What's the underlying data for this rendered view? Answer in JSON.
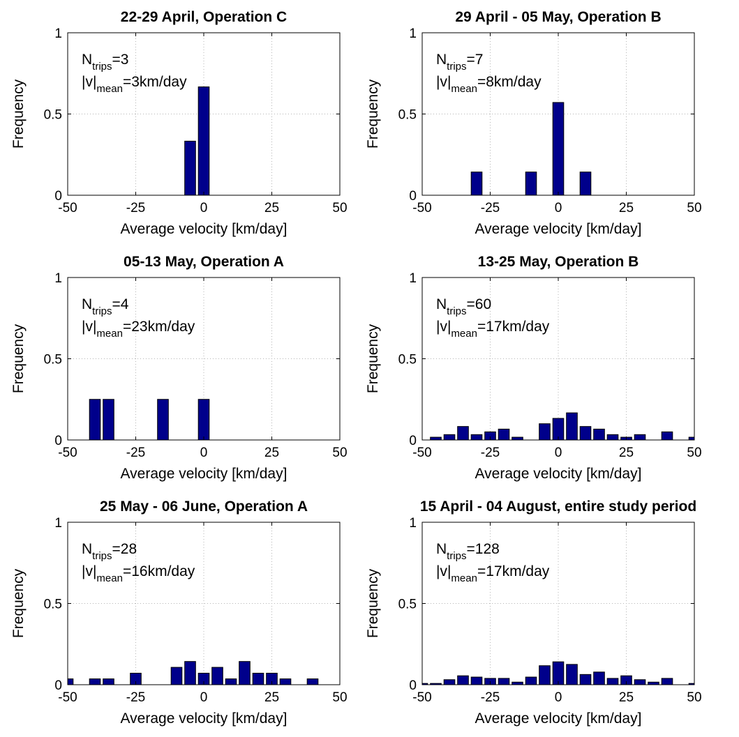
{
  "figure": {
    "background": "#ffffff",
    "bar_color": "#00008b",
    "grid": true
  },
  "chart_data": [
    {
      "type": "bar",
      "title": "22-29 April, Operation C",
      "xlabel": "Average velocity [km/day]",
      "ylabel": "Frequency",
      "xlim": [
        -50,
        50
      ],
      "ylim": [
        0,
        1
      ],
      "xticks": [
        -50,
        -25,
        0,
        25,
        50
      ],
      "xtick_labels": [
        "-50",
        "-25",
        "0",
        "25",
        "50"
      ],
      "yticks": [
        0,
        0.5,
        1
      ],
      "ytick_labels": [
        "0",
        "0.5",
        "1"
      ],
      "bin_width": 5,
      "x": [
        -5,
        0
      ],
      "values": [
        0.333,
        0.667
      ],
      "annotation": {
        "n_label": "N",
        "n_sub": "trips",
        "n_value": "=3",
        "v_label": "|v|",
        "v_sub": "mean",
        "v_value": "=3km/day"
      }
    },
    {
      "type": "bar",
      "title": "29 April - 05 May, Operation B",
      "xlabel": "Average velocity [km/day]",
      "ylabel": "Frequency",
      "xlim": [
        -50,
        50
      ],
      "ylim": [
        0,
        1
      ],
      "xticks": [
        -50,
        -25,
        0,
        25,
        50
      ],
      "xtick_labels": [
        "-50",
        "-25",
        "0",
        "25",
        "50"
      ],
      "yticks": [
        0,
        0.5,
        1
      ],
      "ytick_labels": [
        "0",
        "0.5",
        "1"
      ],
      "bin_width": 5,
      "x": [
        -30,
        -10,
        0,
        10
      ],
      "values": [
        0.143,
        0.143,
        0.571,
        0.143
      ],
      "annotation": {
        "n_label": "N",
        "n_sub": "trips",
        "n_value": "=7",
        "v_label": "|v|",
        "v_sub": "mean",
        "v_value": "=8km/day"
      }
    },
    {
      "type": "bar",
      "title": "05-13 May, Operation A",
      "xlabel": "Average velocity [km/day]",
      "ylabel": "Frequency",
      "xlim": [
        -50,
        50
      ],
      "ylim": [
        0,
        1
      ],
      "xticks": [
        -50,
        -25,
        0,
        25,
        50
      ],
      "xtick_labels": [
        "-50",
        "-25",
        "0",
        "25",
        "50"
      ],
      "yticks": [
        0,
        0.5,
        1
      ],
      "ytick_labels": [
        "0",
        "0.5",
        "1"
      ],
      "bin_width": 5,
      "x": [
        -40,
        -35,
        -15,
        0
      ],
      "values": [
        0.25,
        0.25,
        0.25,
        0.25
      ],
      "annotation": {
        "n_label": "N",
        "n_sub": "trips",
        "n_value": "=4",
        "v_label": "|v|",
        "v_sub": "mean",
        "v_value": "=23km/day"
      }
    },
    {
      "type": "bar",
      "title": "13-25 May, Operation B",
      "xlabel": "Average velocity [km/day]",
      "ylabel": "Frequency",
      "xlim": [
        -50,
        50
      ],
      "ylim": [
        0,
        1
      ],
      "xticks": [
        -50,
        -25,
        0,
        25,
        50
      ],
      "xtick_labels": [
        "-50",
        "-25",
        "0",
        "25",
        "50"
      ],
      "yticks": [
        0,
        0.5,
        1
      ],
      "ytick_labels": [
        "0",
        "0.5",
        "1"
      ],
      "bin_width": 5,
      "x": [
        -45,
        -40,
        -35,
        -30,
        -25,
        -20,
        -15,
        -5,
        0,
        5,
        10,
        15,
        20,
        25,
        30,
        40,
        50
      ],
      "values": [
        0.017,
        0.033,
        0.083,
        0.033,
        0.05,
        0.067,
        0.017,
        0.1,
        0.133,
        0.167,
        0.083,
        0.067,
        0.033,
        0.017,
        0.033,
        0.05,
        0.017
      ],
      "annotation": {
        "n_label": "N",
        "n_sub": "trips",
        "n_value": "=60",
        "v_label": "|v|",
        "v_sub": "mean",
        "v_value": "=17km/day"
      }
    },
    {
      "type": "bar",
      "title": "25 May - 06 June, Operation A",
      "xlabel": "Average velocity [km/day]",
      "ylabel": "Frequency",
      "xlim": [
        -50,
        50
      ],
      "ylim": [
        0,
        1
      ],
      "xticks": [
        -50,
        -25,
        0,
        25,
        50
      ],
      "xtick_labels": [
        "-50",
        "-25",
        "0",
        "25",
        "50"
      ],
      "yticks": [
        0,
        0.5,
        1
      ],
      "ytick_labels": [
        "0",
        "0.5",
        "1"
      ],
      "bin_width": 5,
      "x": [
        -50,
        -40,
        -35,
        -25,
        -10,
        -5,
        0,
        5,
        10,
        15,
        20,
        25,
        30,
        40
      ],
      "values": [
        0.036,
        0.036,
        0.036,
        0.071,
        0.107,
        0.143,
        0.071,
        0.107,
        0.036,
        0.143,
        0.071,
        0.071,
        0.036,
        0.036
      ],
      "annotation": {
        "n_label": "N",
        "n_sub": "trips",
        "n_value": "=28",
        "v_label": "|v|",
        "v_sub": "mean",
        "v_value": "=16km/day"
      }
    },
    {
      "type": "bar",
      "title": "15 April - 04 August, entire study period",
      "xlabel": "Average velocity [km/day]",
      "ylabel": "Frequency",
      "xlim": [
        -50,
        50
      ],
      "ylim": [
        0,
        1
      ],
      "xticks": [
        -50,
        -25,
        0,
        25,
        50
      ],
      "xtick_labels": [
        "-50",
        "-25",
        "0",
        "25",
        "50"
      ],
      "yticks": [
        0,
        0.5,
        1
      ],
      "ytick_labels": [
        "0",
        "0.5",
        "1"
      ],
      "bin_width": 5,
      "x": [
        -50,
        -45,
        -40,
        -35,
        -30,
        -25,
        -20,
        -15,
        -10,
        -5,
        0,
        5,
        10,
        15,
        20,
        25,
        30,
        35,
        40,
        50
      ],
      "values": [
        0.008,
        0.008,
        0.031,
        0.055,
        0.047,
        0.039,
        0.039,
        0.016,
        0.047,
        0.117,
        0.141,
        0.125,
        0.063,
        0.078,
        0.039,
        0.055,
        0.031,
        0.016,
        0.039,
        0.008
      ],
      "annotation": {
        "n_label": "N",
        "n_sub": "trips",
        "n_value": "=128",
        "v_label": "|v|",
        "v_sub": "mean",
        "v_value": "=17km/day"
      }
    }
  ]
}
